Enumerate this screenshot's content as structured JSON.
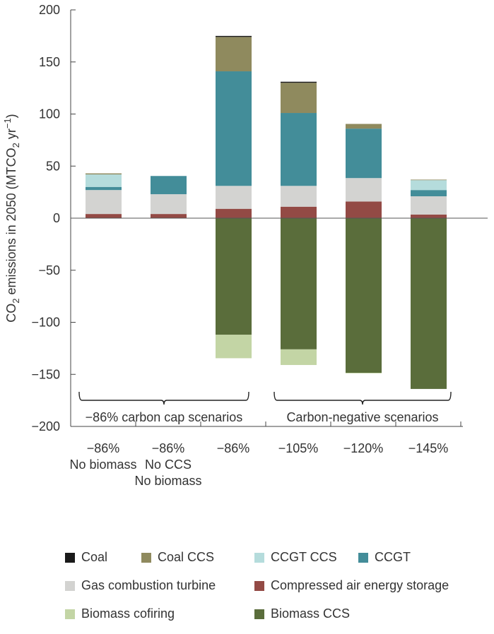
{
  "chart_data": {
    "type": "bar",
    "stacked": true,
    "ylabel": {
      "pre": "CO",
      "sub1": "2",
      "mid": " emissions in 2050 (MTCO",
      "sub2": "2",
      "post": " yr",
      "sup": "−1",
      "close": ")"
    },
    "ylim": [
      -200,
      200
    ],
    "yticks": [
      "200",
      "150",
      "100",
      "50",
      "0",
      "−50",
      "−100",
      "−150",
      "−200"
    ],
    "yticks_values": [
      200,
      150,
      100,
      50,
      0,
      -50,
      -100,
      -150,
      -200
    ],
    "categories": [
      [
        "−86%",
        "No biomass"
      ],
      [
        "−86%",
        "No CCS",
        "No biomass"
      ],
      [
        "−86%"
      ],
      [
        "−105%"
      ],
      [
        "−120%"
      ],
      [
        "−145%"
      ]
    ],
    "groups": [
      {
        "label": "−86% carbon cap scenarios",
        "span": [
          0,
          2
        ]
      },
      {
        "label": "Carbon-negative scenarios",
        "span": [
          3,
          5
        ]
      }
    ],
    "series": [
      {
        "name": "Compressed air energy storage",
        "color": "#934a45",
        "values": [
          4,
          4,
          9,
          11,
          16,
          3.5
        ]
      },
      {
        "name": "Gas combustion turbine",
        "color": "#d3d3d1",
        "values": [
          23,
          19,
          22,
          20,
          22.5,
          17.5
        ]
      },
      {
        "name": "CCGT",
        "color": "#438d99",
        "values": [
          3,
          17.5,
          110,
          70,
          47.5,
          6
        ]
      },
      {
        "name": "CCGT CCS",
        "color": "#b5dcdc",
        "values": [
          12,
          0,
          0,
          0,
          0,
          9.5
        ]
      },
      {
        "name": "Coal CCS",
        "color": "#8f8a5e",
        "values": [
          1,
          0,
          33,
          29,
          4.5,
          0.5
        ]
      },
      {
        "name": "Coal",
        "color": "#1a1a1a",
        "values": [
          0,
          0,
          1,
          1,
          0,
          0
        ]
      },
      {
        "name": "Biomass CCS",
        "color": "#5a6d3b",
        "values": [
          0,
          0,
          -112,
          -126,
          -148.5,
          -164
        ]
      },
      {
        "name": "Biomass cofiring",
        "color": "#c3d5a5",
        "values": [
          0,
          0,
          -22.5,
          -15,
          -0.5,
          0
        ]
      }
    ],
    "legend": {
      "placement": "bottom",
      "items": [
        {
          "name": "Coal",
          "color": "#1a1a1a"
        },
        {
          "name": "Coal CCS",
          "color": "#8f8a5e"
        },
        {
          "name": "CCGT CCS",
          "color": "#b5dcdc"
        },
        {
          "name": "CCGT",
          "color": "#438d99"
        },
        {
          "name": "Gas combustion turbine",
          "color": "#d3d3d1"
        },
        {
          "name": "Compressed air energy storage",
          "color": "#934a45"
        },
        {
          "name": "Biomass cofiring",
          "color": "#c3d5a5"
        },
        {
          "name": "Biomass CCS",
          "color": "#5a6d3b"
        }
      ]
    },
    "grid": false
  }
}
